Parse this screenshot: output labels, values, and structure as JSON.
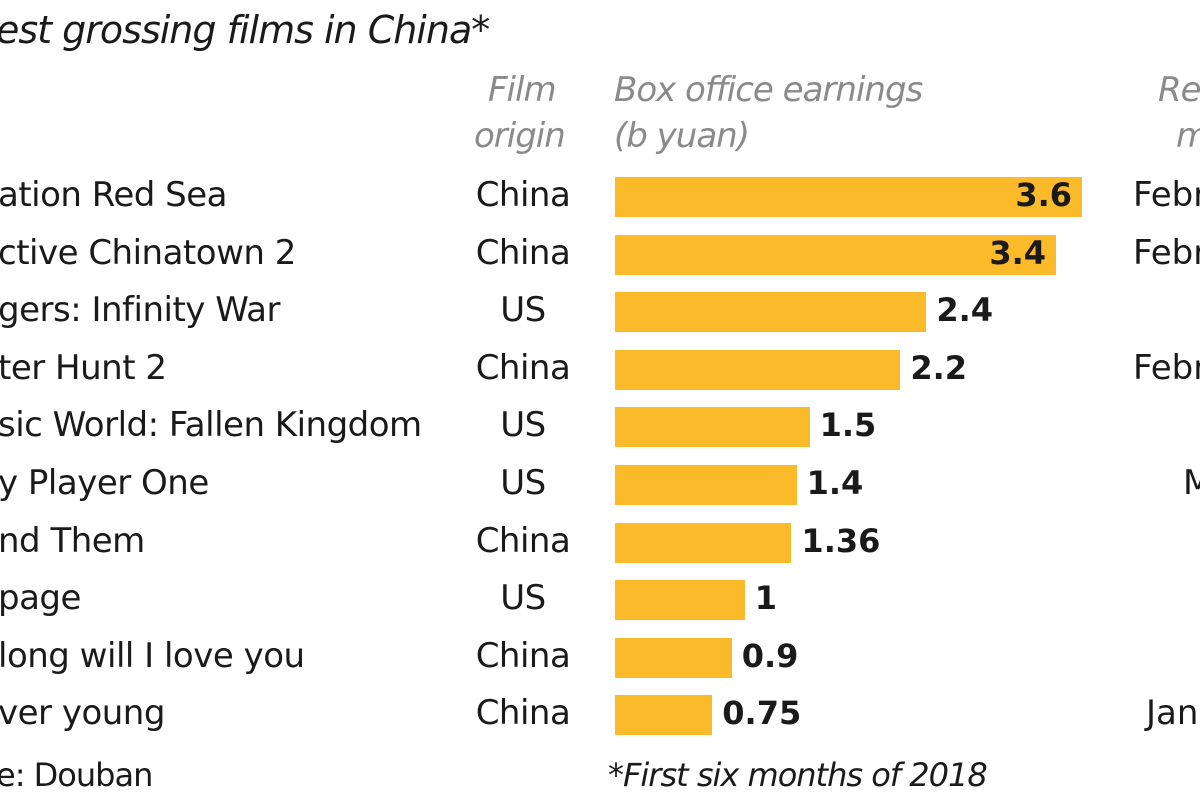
{
  "chart_data": {
    "type": "bar",
    "orientation": "horizontal",
    "title": "est grossing films in China*",
    "columns": {
      "film_origin": [
        "Film",
        "origin"
      ],
      "earnings": [
        "Box office earnings",
        "(b yuan)"
      ],
      "release": [
        "Re",
        "m"
      ]
    },
    "categories": [
      "ation Red Sea",
      "ctive Chinatown 2",
      "gers: Infinity War",
      "ter Hunt 2",
      "sic World: Fallen Kingdom",
      "y Player One",
      "nd Them",
      "page",
      "long will I love you",
      "ver young"
    ],
    "origins": [
      "China",
      "China",
      "US",
      "China",
      "US",
      "US",
      "China",
      "US",
      "China",
      "China"
    ],
    "values": [
      3.6,
      3.4,
      2.4,
      2.2,
      1.5,
      1.4,
      1.36,
      1,
      0.9,
      0.75
    ],
    "value_labels": [
      "3.6",
      "3.4",
      "2.4",
      "2.2",
      "1.5",
      "1.4",
      "1.36",
      "1",
      "0.9",
      "0.75"
    ],
    "release": [
      "Febr",
      "Febr",
      "",
      "Febr",
      "",
      "M",
      "",
      "",
      "",
      "Jan"
    ],
    "xlim": [
      0,
      3.6
    ],
    "bar_color": "#fbba2a",
    "source": "e: Douban",
    "footnote": "*First six months of 2018"
  }
}
